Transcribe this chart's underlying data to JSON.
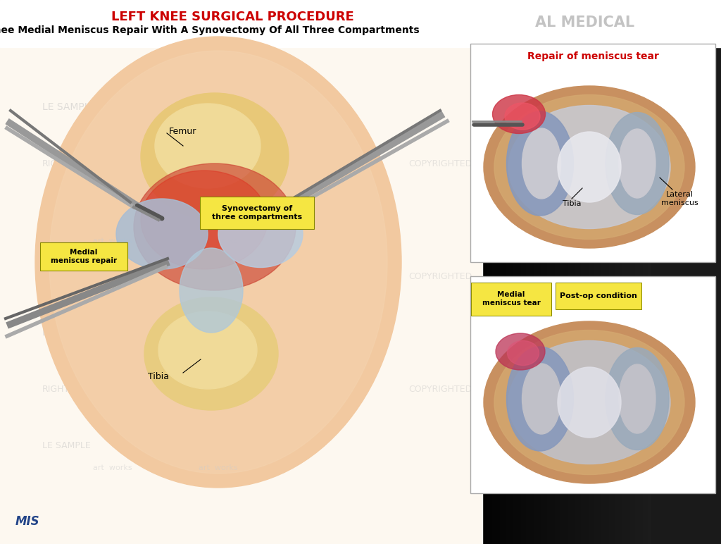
{
  "title_main": "LEFT KNEE SURGICAL PROCEDURE",
  "title_sub": "Left Knee Medial Meniscus Repair With A Synovectomy Of All Three Compartments",
  "title_main_color": "#cc0000",
  "title_sub_color": "#000000",
  "background_color": "#ffffff",
  "inset1_title": "Repair of meniscus tear",
  "inset1_title_color": "#cc0000",
  "inset2_label1": "Medial\nmeniscus tear",
  "inset2_label2": "Post-op condition",
  "inset2_label_bg": "#f5e642",
  "label_synovectomy": "Synovectomy of\nthree compartments",
  "label_synovectomy_bg": "#f5e642",
  "label_medial": "Medial\nmeniscus repair",
  "label_medial_bg": "#f5e642",
  "label_femur": "Femur",
  "label_tibia_main": "Tibia",
  "label_tibia_inset": "Tibia",
  "label_lateral": "Lateral\nmeniscus",
  "mis_text": "MIS",
  "fig_width": 10.24,
  "fig_height": 7.72
}
